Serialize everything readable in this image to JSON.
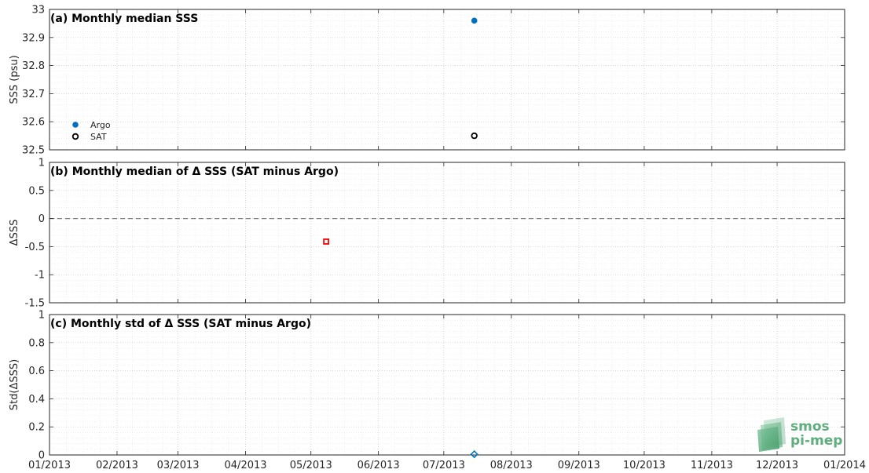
{
  "chart_data": [
    {
      "type": "scatter",
      "panel": "a",
      "title": "(a) Monthly median SSS",
      "ylabel": "SSS (psu)",
      "ylim": [
        32.5,
        33
      ],
      "yticks": [
        "32.5",
        "32.6",
        "32.7",
        "32.8",
        "32.9",
        "33"
      ],
      "grid": true,
      "legend_position": "bottom-left",
      "series": [
        {
          "name": "Argo",
          "color": "#0072BD",
          "marker": "filled-circle",
          "points": [
            {
              "x": "2013-07-15",
              "y": 32.96
            }
          ]
        },
        {
          "name": "SAT",
          "color": "#000000",
          "marker": "open-circle",
          "points": [
            {
              "x": "2013-07-15",
              "y": 32.55
            }
          ]
        }
      ]
    },
    {
      "type": "scatter",
      "panel": "b",
      "title": "(b) Monthly median of Δ SSS (SAT minus Argo)",
      "ylabel": "ΔSSS",
      "ylim": [
        -1.5,
        1
      ],
      "yticks": [
        "-1.5",
        "-1",
        "-0.5",
        "0",
        "0.5",
        "1"
      ],
      "grid": true,
      "reference_line": {
        "y": 0,
        "style": "dashed",
        "color": "#808080"
      },
      "series": [
        {
          "color": "#FF0000",
          "marker": "open-square",
          "points": [
            {
              "x": "2013-05-08",
              "y": -0.41
            }
          ]
        }
      ]
    },
    {
      "type": "scatter",
      "panel": "c",
      "title": "(c) Monthly std of Δ SSS (SAT minus Argo)",
      "ylabel": "Std(ΔSSS)",
      "ylim": [
        0,
        1
      ],
      "yticks": [
        "0",
        "0.2",
        "0.4",
        "0.6",
        "0.8",
        "1"
      ],
      "grid": true,
      "xticks": [
        "01/2013",
        "02/2013",
        "03/2013",
        "04/2013",
        "05/2013",
        "06/2013",
        "07/2013",
        "08/2013",
        "09/2013",
        "10/2013",
        "11/2013",
        "12/2013",
        "01/2014"
      ],
      "series": [
        {
          "color": "#0072BD",
          "marker": "open-diamond",
          "points": [
            {
              "x": "2013-07-15",
              "y": 0.005
            }
          ]
        }
      ]
    }
  ],
  "logo": {
    "line1": "smos",
    "line2": "pi-mep",
    "color": "#5fae7e"
  }
}
